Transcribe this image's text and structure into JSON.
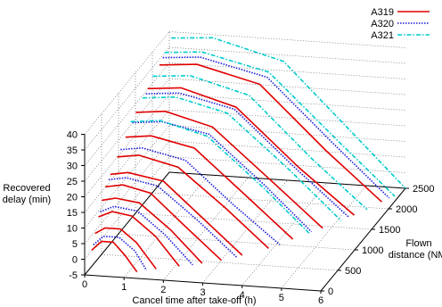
{
  "chart_data": {
    "type": "line",
    "projection": "3d",
    "title": "",
    "xlabel": "Cancel time after take-off (h)",
    "ylabel": "Flown distance (NM)",
    "zlabel": "Recovered delay (min)",
    "xlim": [
      0,
      6
    ],
    "ylim": [
      0,
      2500
    ],
    "zlim": [
      -5,
      40
    ],
    "xticks": [
      "0",
      "1",
      "2",
      "3",
      "4",
      "5",
      "6"
    ],
    "yticks": [
      "0",
      "500",
      "1000",
      "1500",
      "2000",
      "2500"
    ],
    "zticks": [
      "-5",
      "0",
      "5",
      "10",
      "15",
      "20",
      "25",
      "30",
      "35",
      "40"
    ],
    "grid": true,
    "legend_position": "top-right",
    "series": [
      {
        "name": "A319",
        "color": "#e00000",
        "dash": "solid",
        "curves": [
          {
            "distance": 150,
            "points": [
              [
                0.05,
                1
              ],
              [
                0.3,
                4
              ],
              [
                0.6,
                4
              ],
              [
                0.9,
                0
              ],
              [
                1.2,
                -5
              ]
            ]
          },
          {
            "distance": 250,
            "points": [
              [
                0.05,
                5
              ],
              [
                0.3,
                7
              ],
              [
                0.7,
                7
              ],
              [
                1.1,
                3
              ],
              [
                1.6,
                -5
              ]
            ]
          },
          {
            "distance": 350,
            "points": [
              [
                0.05,
                9
              ],
              [
                0.4,
                11
              ],
              [
                0.9,
                10
              ],
              [
                1.5,
                4
              ],
              [
                2.1,
                -5
              ]
            ]
          },
          {
            "distance": 450,
            "points": [
              [
                0.05,
                13
              ],
              [
                0.4,
                14
              ],
              [
                1.0,
                13
              ],
              [
                1.8,
                5
              ],
              [
                2.6,
                -5
              ]
            ]
          },
          {
            "distance": 550,
            "points": [
              [
                0.05,
                16
              ],
              [
                0.5,
                17
              ],
              [
                1.2,
                15
              ],
              [
                2.0,
                6
              ],
              [
                3.0,
                -5
              ]
            ]
          },
          {
            "distance": 700,
            "points": [
              [
                0.05,
                18
              ],
              [
                0.5,
                19
              ],
              [
                1.4,
                17
              ],
              [
                2.4,
                6
              ],
              [
                3.4,
                -5
              ]
            ]
          },
          {
            "distance": 900,
            "points": [
              [
                0.05,
                21
              ],
              [
                0.6,
                22
              ],
              [
                1.6,
                19
              ],
              [
                2.8,
                7
              ],
              [
                3.9,
                -5
              ]
            ]
          },
          {
            "distance": 1150,
            "points": [
              [
                0.05,
                24
              ],
              [
                0.7,
                25
              ],
              [
                1.8,
                22
              ],
              [
                3.1,
                8
              ],
              [
                4.3,
                -5
              ]
            ]
          },
          {
            "distance": 1450,
            "points": [
              [
                0.05,
                28
              ],
              [
                0.8,
                29
              ],
              [
                2.0,
                25
              ],
              [
                3.5,
                9
              ],
              [
                4.8,
                -5
              ]
            ]
          },
          {
            "distance": 1800,
            "points": [
              [
                0.05,
                31
              ],
              [
                0.9,
                32
              ],
              [
                2.3,
                27
              ],
              [
                3.9,
                9
              ],
              [
                5.3,
                -5
              ]
            ]
          },
          {
            "distance": 2150,
            "points": [
              [
                0.05,
                34
              ],
              [
                1.0,
                35
              ],
              [
                2.6,
                30
              ],
              [
                4.3,
                10
              ],
              [
                5.7,
                -5
              ]
            ]
          }
        ]
      },
      {
        "name": "A320",
        "color": "#1a1adc",
        "dash": "dotted",
        "curves": [
          {
            "distance": 200,
            "points": [
              [
                0.05,
                2
              ],
              [
                0.3,
                5
              ],
              [
                0.7,
                5
              ],
              [
                1.1,
                1
              ],
              [
                1.4,
                -5
              ]
            ]
          },
          {
            "distance": 400,
            "points": [
              [
                0.05,
                10
              ],
              [
                0.4,
                12
              ],
              [
                1.0,
                11
              ],
              [
                1.7,
                4
              ],
              [
                2.4,
                -5
              ]
            ]
          },
          {
            "distance": 650,
            "points": [
              [
                0.05,
                17
              ],
              [
                0.5,
                18
              ],
              [
                1.3,
                16
              ],
              [
                2.3,
                6
              ],
              [
                3.3,
                -5
              ]
            ]
          },
          {
            "distance": 1000,
            "points": [
              [
                0.05,
                22
              ],
              [
                0.6,
                23
              ],
              [
                1.7,
                20
              ],
              [
                2.9,
                7
              ],
              [
                4.1,
                -5
              ]
            ]
          },
          {
            "distance": 1350,
            "points": [
              [
                0.05,
                26
              ],
              [
                0.8,
                27
              ],
              [
                2.0,
                24
              ],
              [
                3.4,
                9
              ],
              [
                4.6,
                -5
              ]
            ]
          },
          {
            "distance": 1750,
            "points": [
              [
                0.05,
                30
              ],
              [
                0.9,
                31
              ],
              [
                2.3,
                27
              ],
              [
                3.8,
                10
              ],
              [
                5.2,
                -5
              ]
            ]
          },
          {
            "distance": 2250,
            "points": [
              [
                0.05,
                35
              ],
              [
                1.0,
                36
              ],
              [
                2.7,
                31
              ],
              [
                4.4,
                11
              ],
              [
                5.8,
                -5
              ]
            ]
          }
        ]
      },
      {
        "name": "A321",
        "color": "#00cccc",
        "dash": "dash-dot",
        "curves": [
          {
            "distance": 1300,
            "points": [
              [
                0.05,
                27
              ],
              [
                0.8,
                28
              ],
              [
                2.0,
                24
              ],
              [
                3.4,
                9
              ],
              [
                4.6,
                -5
              ]
            ]
          },
          {
            "distance": 1650,
            "points": [
              [
                0.05,
                30
              ],
              [
                0.9,
                31
              ],
              [
                2.2,
                27
              ],
              [
                3.8,
                10
              ],
              [
                5.1,
                -5
              ]
            ]
          },
          {
            "distance": 1950,
            "points": [
              [
                0.05,
                33
              ],
              [
                1.0,
                34
              ],
              [
                2.5,
                29
              ],
              [
                4.1,
                10
              ],
              [
                5.5,
                -5
              ]
            ]
          },
          {
            "distance": 2300,
            "points": [
              [
                0.05,
                36
              ],
              [
                1.0,
                37
              ],
              [
                2.7,
                32
              ],
              [
                4.5,
                11
              ],
              [
                5.9,
                -5
              ]
            ]
          },
          {
            "distance": 2500,
            "points": [
              [
                0.05,
                38
              ],
              [
                1.1,
                39
              ],
              [
                2.9,
                33
              ],
              [
                4.7,
                11
              ],
              [
                6.0,
                -5
              ]
            ]
          }
        ]
      }
    ]
  }
}
